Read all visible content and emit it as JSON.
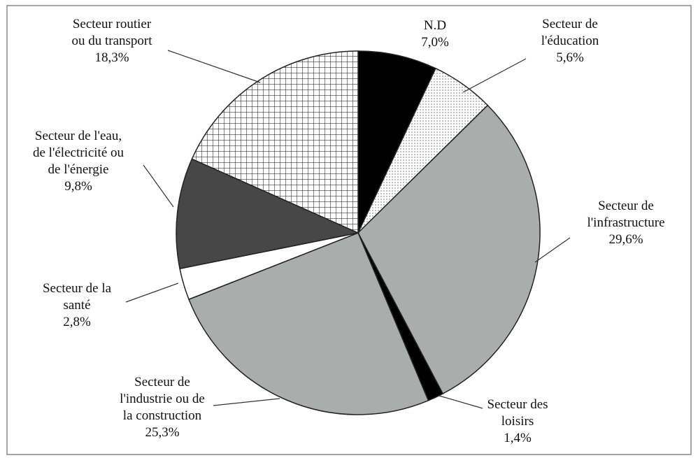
{
  "chart_data": {
    "type": "pie",
    "categories": [
      "N.D",
      "Secteur de\nl'éducation",
      "Secteur de\nl'infrastructure",
      "Secteur des\nloisirs",
      "Secteur de\nl'industrie ou de\nla construction",
      "Secteur de la\nsanté",
      "Secteur de l'eau,\nde l'électricité  ou\nde l'énergie",
      "Secteur routier\nou du transport"
    ],
    "values": [
      7.0,
      5.6,
      29.6,
      1.4,
      25.3,
      2.8,
      9.8,
      18.3
    ],
    "value_labels": [
      "7,0%",
      "5,6%",
      "29,6%",
      "1,4%",
      "25,3%",
      "2,8%",
      "9,8%",
      "18,3%"
    ],
    "colors": [
      "#000000",
      "#eeeeee",
      "#a9adab",
      "#000000",
      "#a9adab",
      "#ffffff",
      "#474747",
      "#dcdcdc"
    ]
  }
}
